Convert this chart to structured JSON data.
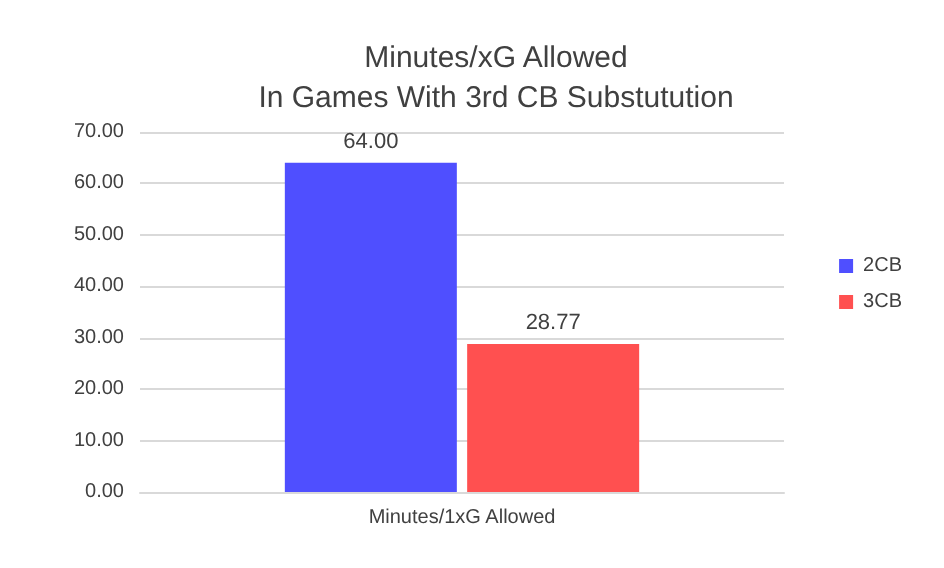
{
  "chart_data": {
    "type": "bar",
    "title": "Minutes/xG Allowed\nIn Games With 3rd CB Substutution",
    "categories": [
      "Minutes/1xG Allowed"
    ],
    "series": [
      {
        "name": "2CB",
        "color": "#4f4fff",
        "values": [
          64.0
        ],
        "value_labels": [
          "64.00"
        ]
      },
      {
        "name": "3CB",
        "color": "#ff5050",
        "values": [
          28.77
        ],
        "value_labels": [
          "28.77"
        ]
      }
    ],
    "ylim": [
      0,
      70
    ],
    "yticks": [
      {
        "value": 0,
        "label": "0.00"
      },
      {
        "value": 10,
        "label": "10.00"
      },
      {
        "value": 20,
        "label": "20.00"
      },
      {
        "value": 30,
        "label": "30.00"
      },
      {
        "value": 40,
        "label": "40.00"
      },
      {
        "value": 50,
        "label": "50.00"
      },
      {
        "value": 60,
        "label": "60.00"
      },
      {
        "value": 70,
        "label": "70.00"
      }
    ],
    "grid": "y",
    "legend": "right"
  }
}
